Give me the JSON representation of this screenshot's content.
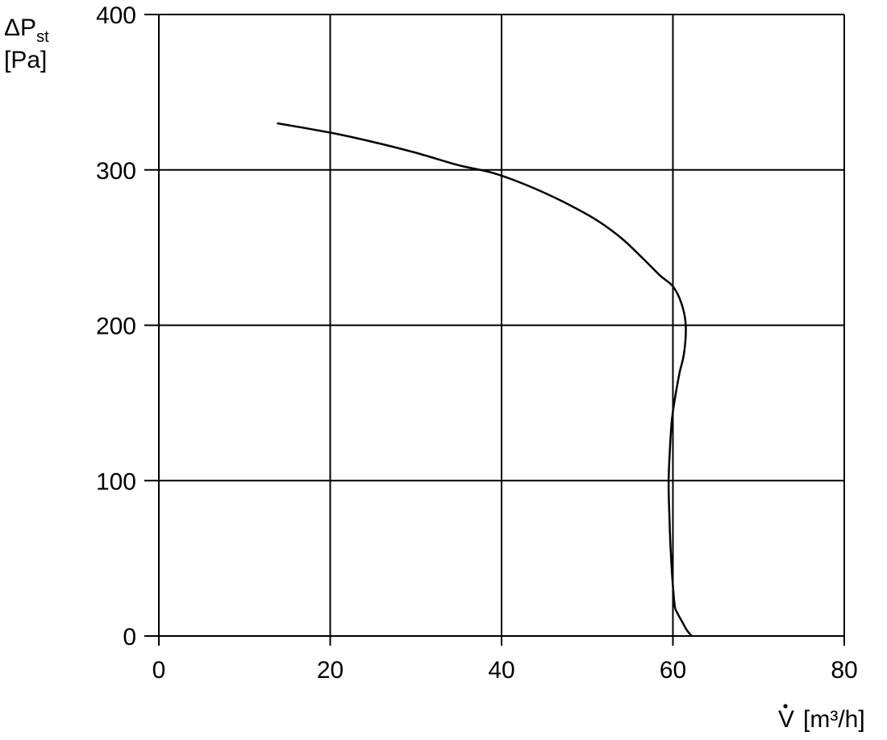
{
  "chart_data": {
    "type": "line",
    "xlabel": {
      "symbol": "V",
      "unit": "[m³/h]"
    },
    "ylabel": {
      "symbol": "ΔP",
      "subscript": "st",
      "unit": "[Pa]"
    },
    "xlim": [
      0,
      80
    ],
    "ylim": [
      0,
      400
    ],
    "xticks": [
      "0",
      "20",
      "40",
      "60",
      "80"
    ],
    "yticks": [
      "0",
      "100",
      "200",
      "300",
      "400"
    ],
    "xtick_values": [
      0,
      20,
      40,
      60,
      80
    ],
    "ytick_values": [
      0,
      100,
      200,
      300,
      400
    ],
    "grid": true,
    "series": [
      {
        "x": [
          13.8,
          20,
          25,
          30,
          35,
          39,
          43,
          47,
          51,
          54,
          56.5,
          58.5,
          60,
          61,
          61.5,
          61.3,
          60.8,
          60.3,
          59.9,
          59.7,
          59.5,
          59.6,
          59.7,
          59.9,
          60.2,
          60.5,
          61.1,
          61.6,
          62.2
        ],
        "y": [
          330,
          324,
          318,
          311,
          303,
          298,
          290,
          280,
          268,
          256,
          243,
          232,
          225,
          214,
          200,
          182,
          170,
          155,
          140,
          125,
          100,
          75,
          60,
          40,
          20,
          15,
          9,
          4,
          0
        ]
      }
    ]
  }
}
